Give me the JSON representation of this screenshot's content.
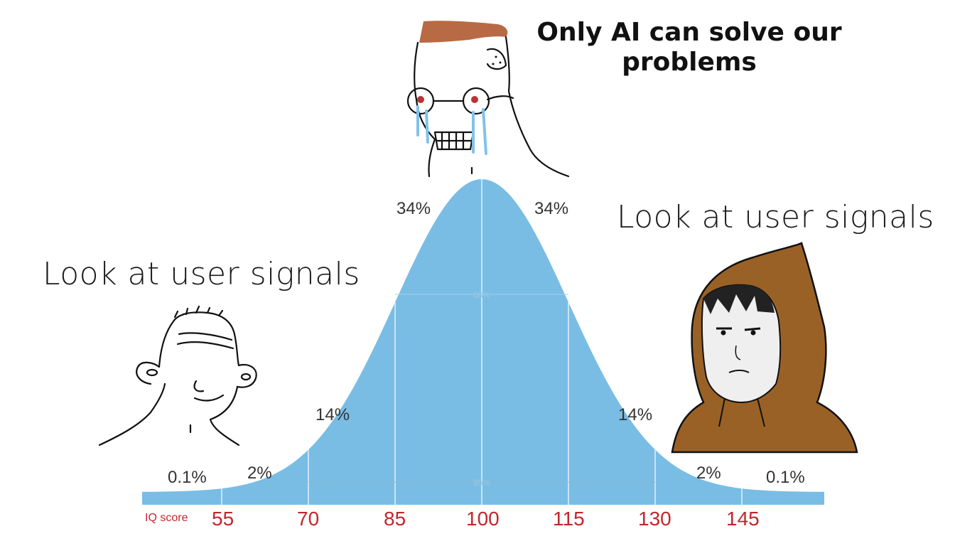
{
  "captions": {
    "top": "Only AI can solve our problems",
    "top_line1": "Only AI can solve our",
    "top_line2": "problems",
    "left": "Look at user signals",
    "right": "Look at user signals"
  },
  "distribution": {
    "band_labels": [
      "0.1%",
      "2%",
      "14%",
      "34%",
      "34%",
      "14%",
      "2%",
      "0.1%"
    ],
    "inner_labels": [
      "68%",
      "95%"
    ],
    "axis_title": "IQ score",
    "ticks": [
      "55",
      "70",
      "85",
      "100",
      "115",
      "130",
      "145"
    ]
  },
  "characters": {
    "left": "wojak-character-icon",
    "top": "crying-glasses-character-icon",
    "right": "hooded-character-icon"
  },
  "colors": {
    "curve_fill": "#79BDE5",
    "tick_text": "#C1272D"
  }
}
